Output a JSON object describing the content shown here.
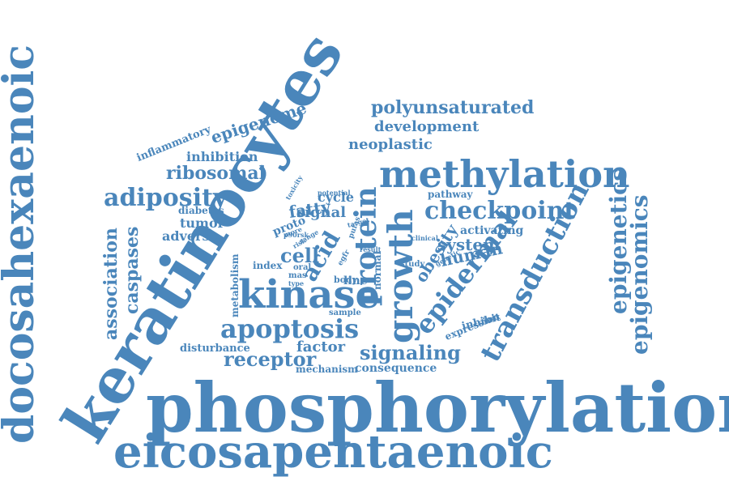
{
  "accent_color": "#4a86bb",
  "words": [
    {
      "id": "phosphorylation",
      "text": "phosphorylation"
    },
    {
      "id": "keratinocytes",
      "text": "keratinocytes"
    },
    {
      "id": "docosahexaenoic",
      "text": "docosahexaenoic"
    },
    {
      "id": "eicosapentaenoic",
      "text": "eicosapentaenoic"
    },
    {
      "id": "methylation",
      "text": "methylation"
    },
    {
      "id": "kinase",
      "text": "kinase"
    },
    {
      "id": "growth",
      "text": "growth"
    },
    {
      "id": "protein",
      "text": "protein"
    },
    {
      "id": "transduction",
      "text": "transduction"
    },
    {
      "id": "epigenomics",
      "text": "epigenomics"
    },
    {
      "id": "epigenetics",
      "text": "epigenetics"
    },
    {
      "id": "epidermal",
      "text": "epidermal"
    },
    {
      "id": "checkpoint",
      "text": "checkpoint"
    },
    {
      "id": "apoptosis",
      "text": "apoptosis"
    },
    {
      "id": "adiposity",
      "text": "adiposity"
    },
    {
      "id": "ribosomal",
      "text": "ribosomal"
    },
    {
      "id": "polyunsaturated",
      "text": "polyunsaturated"
    },
    {
      "id": "development",
      "text": "development"
    },
    {
      "id": "neoplastic",
      "text": "neoplastic"
    },
    {
      "id": "epigenome",
      "text": "epigenome"
    },
    {
      "id": "inflammatory",
      "text": "inflammatory"
    },
    {
      "id": "inhibition",
      "text": "inhibition"
    },
    {
      "id": "receptor",
      "text": "receptor"
    },
    {
      "id": "signaling",
      "text": "signaling"
    },
    {
      "id": "consequence",
      "text": "consequence"
    },
    {
      "id": "factor",
      "text": "factor"
    },
    {
      "id": "mechanism",
      "text": "mechanism"
    },
    {
      "id": "disturbance",
      "text": "disturbance"
    },
    {
      "id": "association",
      "text": "association"
    },
    {
      "id": "caspases",
      "text": "caspases"
    },
    {
      "id": "metabolism",
      "text": "metabolism"
    },
    {
      "id": "acid",
      "text": "acid"
    },
    {
      "id": "cell",
      "text": "cell"
    },
    {
      "id": "fatty",
      "text": "fatty"
    },
    {
      "id": "signal",
      "text": "signal"
    },
    {
      "id": "cycle",
      "text": "cycle"
    },
    {
      "id": "tumor",
      "text": "tumor"
    },
    {
      "id": "adverse",
      "text": "adverse"
    },
    {
      "id": "diabetes",
      "text": "diabetes"
    },
    {
      "id": "proto",
      "text": "proto"
    },
    {
      "id": "index",
      "text": "index"
    },
    {
      "id": "obesity",
      "text": "obesity"
    },
    {
      "id": "system",
      "text": "system"
    },
    {
      "id": "human",
      "text": "human"
    },
    {
      "id": "activating",
      "text": "activating"
    },
    {
      "id": "pathway",
      "text": "pathway"
    },
    {
      "id": "inhibit",
      "text": "inhibit"
    },
    {
      "id": "expression",
      "text": "expression"
    },
    {
      "id": "normal",
      "text": "normal"
    },
    {
      "id": "line",
      "text": "line"
    },
    {
      "id": "body",
      "text": "body"
    },
    {
      "id": "oral",
      "text": "oral"
    },
    {
      "id": "mas",
      "text": "mas"
    },
    {
      "id": "type",
      "text": "type"
    },
    {
      "id": "sample",
      "text": "sample"
    },
    {
      "id": "study",
      "text": "study"
    },
    {
      "id": "genetic",
      "text": "genetic"
    },
    {
      "id": "clinical",
      "text": "clinical"
    },
    {
      "id": "result",
      "text": "result"
    },
    {
      "id": "egfr",
      "text": "egfr"
    },
    {
      "id": "pufas",
      "text": "pufas"
    },
    {
      "id": "target",
      "text": "target"
    },
    {
      "id": "potential",
      "text": "potential"
    },
    {
      "id": "toxicity",
      "text": "toxicity"
    },
    {
      "id": "p90rsk",
      "text": "p90rsk"
    },
    {
      "id": "more",
      "text": "more"
    },
    {
      "id": "range",
      "text": "range"
    },
    {
      "id": "risk",
      "text": "risk"
    }
  ]
}
